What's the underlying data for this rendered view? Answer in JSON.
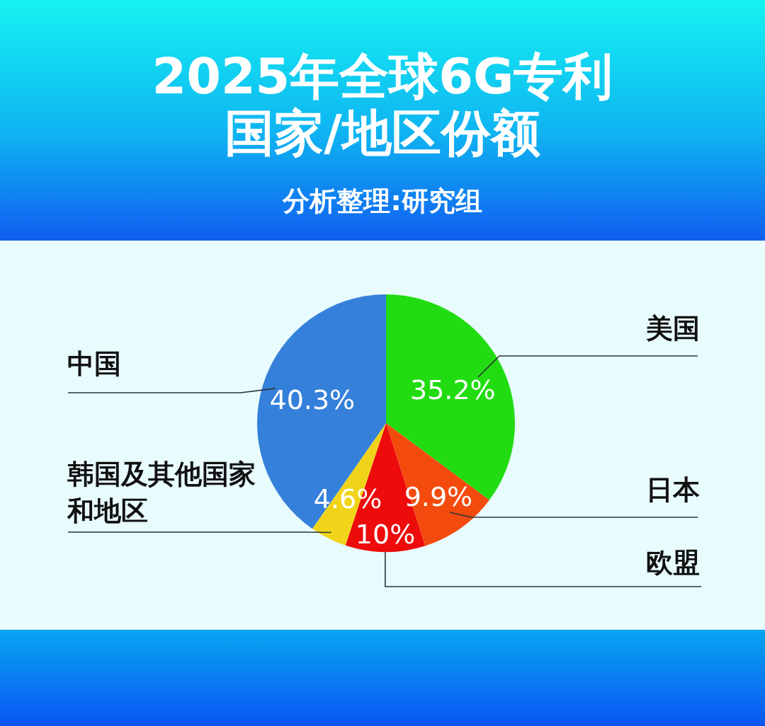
{
  "chart_data": {
    "type": "pie",
    "title": "2025年全球6G专利国家/地区份额",
    "subtitle": "分析整理:研究组",
    "categories": [
      "美国",
      "日本",
      "欧盟",
      "韩国及其他国家和地区",
      "中国"
    ],
    "values": [
      35.2,
      9.9,
      10,
      4.6,
      40.3
    ],
    "colors": [
      "#22dc12",
      "#f34b0e",
      "#ee0b0b",
      "#f1d41a",
      "#3580da"
    ],
    "value_labels": [
      "35.2%",
      "9.9%",
      "10%",
      "4.6%",
      "40.3%"
    ]
  }
}
